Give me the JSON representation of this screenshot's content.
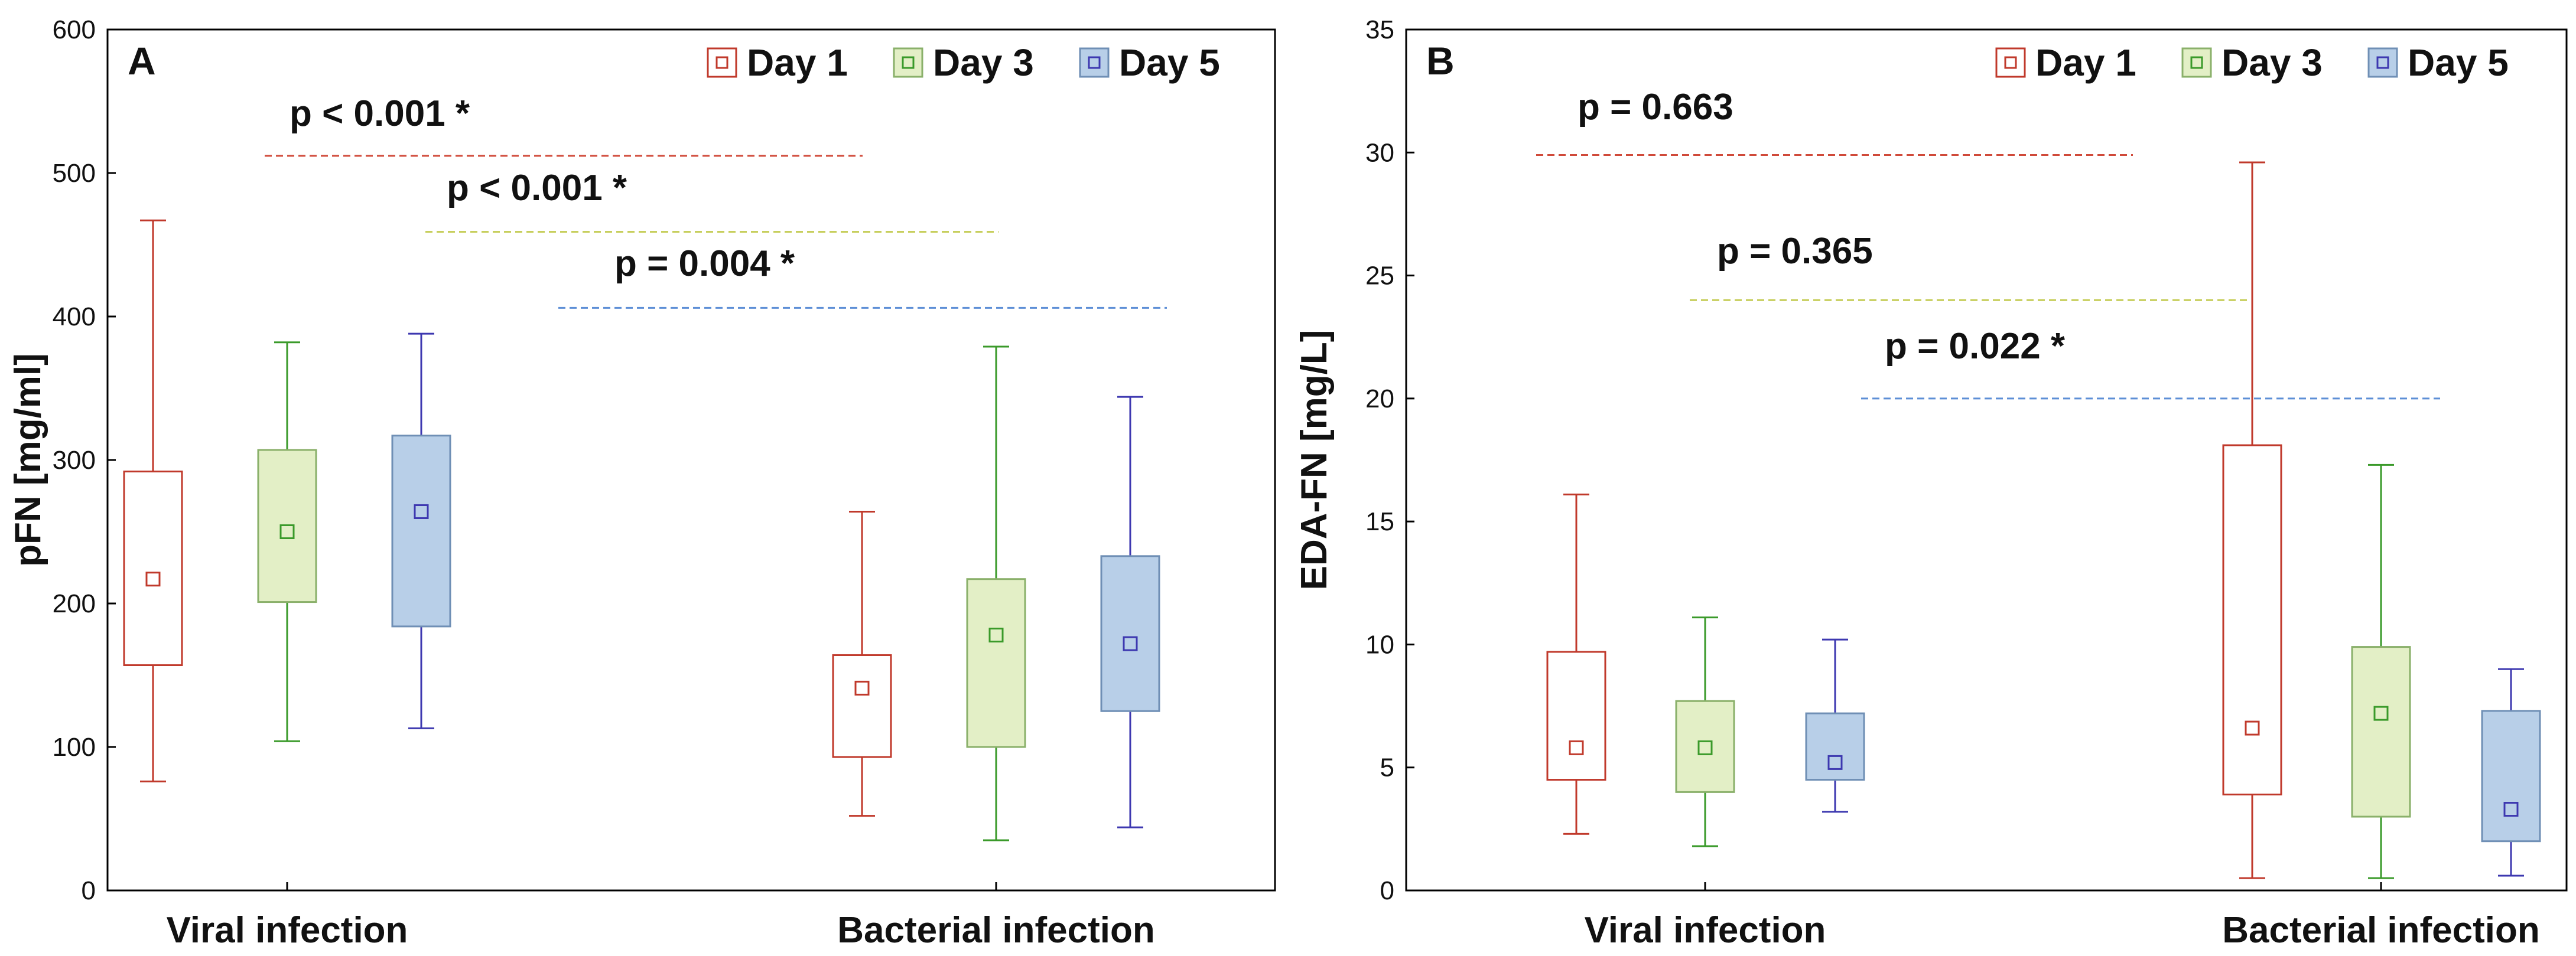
{
  "colors": {
    "day1_stroke": "#c0392b",
    "day1_fill": "#ffffff",
    "day3_stroke": "#3a9a2a",
    "day3_fill": "#e3efc6",
    "day5_stroke": "#3d38b0",
    "day5_fill": "#b8cfe8",
    "day5_box_edge": "#6f8fb5",
    "day3_box_edge": "#8ab06a",
    "pline_day1": "#d04a3a",
    "pline_day3": "#c4cc55",
    "pline_day5": "#5d8fd6",
    "axis": "#000000"
  },
  "chart_data": [
    {
      "type": "box",
      "panel_label": "A",
      "ylabel": "pFN [mg/ml]",
      "xlabel": "",
      "ylim": [
        0,
        600
      ],
      "yticks": [
        0,
        100,
        200,
        300,
        400,
        500,
        600
      ],
      "yticklabels": [
        "0",
        "100",
        "200",
        "300",
        "400",
        "500",
        "600"
      ],
      "categories": [
        "Viral infection",
        "Bacterial infection"
      ],
      "legend": [
        "Day 1",
        "Day 3",
        "Day 5"
      ],
      "legend_position": "top-right",
      "series": [
        {
          "name": "Day 1",
          "boxes": [
            {
              "category": "Viral infection",
              "whisker_low": 76,
              "q1": 157,
              "median": 217,
              "q3": 292,
              "whisker_high": 467
            },
            {
              "category": "Bacterial infection",
              "whisker_low": 52,
              "q1": 93,
              "median": 141,
              "q3": 164,
              "whisker_high": 264
            }
          ]
        },
        {
          "name": "Day 3",
          "boxes": [
            {
              "category": "Viral infection",
              "whisker_low": 104,
              "q1": 201,
              "median": 250,
              "q3": 307,
              "whisker_high": 382
            },
            {
              "category": "Bacterial infection",
              "whisker_low": 35,
              "q1": 100,
              "median": 178,
              "q3": 217,
              "whisker_high": 379
            }
          ]
        },
        {
          "name": "Day 5",
          "boxes": [
            {
              "category": "Viral infection",
              "whisker_low": 113,
              "q1": 184,
              "median": 264,
              "q3": 317,
              "whisker_high": 388
            },
            {
              "category": "Bacterial infection",
              "whisker_low": 44,
              "q1": 125,
              "median": 172,
              "q3": 233,
              "whisker_high": 344
            }
          ]
        }
      ],
      "annotations": [
        {
          "text": "p < 0.001 *",
          "series": "Day 1",
          "y": 512
        },
        {
          "text": "p < 0.001 *",
          "series": "Day 3",
          "y": 459
        },
        {
          "text": "p = 0.004 *",
          "series": "Day 5",
          "y": 406
        }
      ]
    },
    {
      "type": "box",
      "panel_label": "B",
      "ylabel": "EDA-FN [mg/L]",
      "xlabel": "",
      "ylim": [
        0,
        35
      ],
      "yticks": [
        0,
        5,
        10,
        15,
        20,
        25,
        30,
        35
      ],
      "yticklabels": [
        "0",
        "5",
        "10",
        "15",
        "20",
        "25",
        "30",
        "35"
      ],
      "categories": [
        "Viral infection",
        "Bacterial infection"
      ],
      "legend": [
        "Day 1",
        "Day 3",
        "Day 5"
      ],
      "legend_position": "top-right",
      "series": [
        {
          "name": "Day 1",
          "boxes": [
            {
              "category": "Viral infection",
              "whisker_low": 2.3,
              "q1": 4.5,
              "median": 5.8,
              "q3": 9.7,
              "whisker_high": 16.1
            },
            {
              "category": "Bacterial infection",
              "whisker_low": 0.5,
              "q1": 3.9,
              "median": 6.6,
              "q3": 18.1,
              "whisker_high": 29.6
            }
          ]
        },
        {
          "name": "Day 3",
          "boxes": [
            {
              "category": "Viral infection",
              "whisker_low": 1.8,
              "q1": 4.0,
              "median": 5.8,
              "q3": 7.7,
              "whisker_high": 11.1
            },
            {
              "category": "Bacterial infection",
              "whisker_low": 0.5,
              "q1": 3.0,
              "median": 7.2,
              "q3": 9.9,
              "whisker_high": 17.3
            }
          ]
        },
        {
          "name": "Day 5",
          "boxes": [
            {
              "category": "Viral infection",
              "whisker_low": 3.2,
              "q1": 4.5,
              "median": 5.2,
              "q3": 7.2,
              "whisker_high": 10.2
            },
            {
              "category": "Bacterial infection",
              "whisker_low": 0.6,
              "q1": 2.0,
              "median": 3.3,
              "q3": 7.3,
              "whisker_high": 9.0
            }
          ]
        }
      ],
      "annotations": [
        {
          "text": "p = 0.663",
          "series": "Day 1",
          "y": 29.9
        },
        {
          "text": "p = 0.365",
          "series": "Day 3",
          "y": 24.0
        },
        {
          "text": "p = 0.022 *",
          "series": "Day 5",
          "y": 20.0
        }
      ]
    }
  ]
}
